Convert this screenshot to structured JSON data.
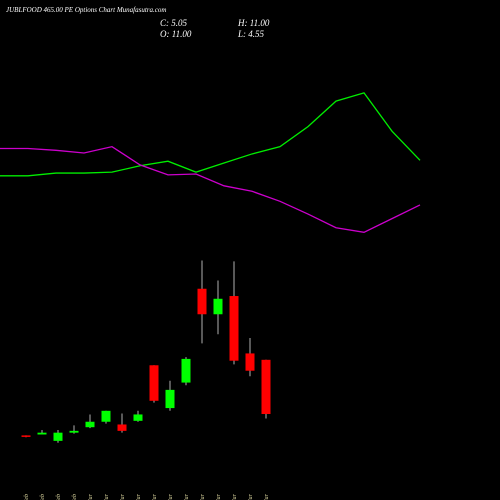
{
  "chart_data": {
    "type": "candlestick",
    "title": "JUBLFOOD 465.00 PE Options  Chart Munafasutra.com",
    "info": [
      "C: 5.05",
      "H: 11.00",
      "O: 11.00",
      "L: 4.55"
    ],
    "categories": [
      "22 Feb",
      "23 Feb",
      "26 Feb",
      "27 Feb",
      "01 Mar",
      "04 Mar",
      "05 Mar",
      "06 Mar",
      "07 Mar",
      "11 Mar",
      "12 Mar",
      "13 Mar",
      "14 Mar",
      "15 Mar",
      "18 Mar",
      "19 Mar"
    ],
    "open": [
      2.7,
      2.8,
      2.1,
      3.0,
      3.6,
      4.2,
      3.9,
      4.3,
      10.4,
      5.7,
      8.5,
      18.8,
      16.0,
      18.0,
      11.7,
      11.0
    ],
    "high": [
      2.7,
      3.3,
      3.3,
      3.8,
      5.0,
      5.4,
      5.1,
      5.4,
      10.4,
      8.7,
      11.3,
      21.9,
      19.7,
      21.8,
      13.4,
      11.0
    ],
    "low": [
      2.5,
      2.8,
      1.9,
      2.9,
      3.5,
      4.0,
      3.0,
      4.2,
      6.3,
      5.4,
      8.2,
      12.8,
      13.8,
      10.5,
      9.2,
      4.55
    ],
    "close": [
      2.6,
      3.0,
      3.0,
      3.2,
      4.2,
      5.4,
      3.2,
      5.0,
      6.5,
      7.7,
      11.1,
      16.0,
      17.7,
      10.9,
      9.8,
      5.05
    ],
    "up_color": "#00ff00",
    "down_color": "#ff0000",
    "lines": [
      {
        "color": "#00ee00",
        "values": [
          31.2,
          31.2,
          31.5,
          31.5,
          31.6,
          32.3,
          32.8,
          31.6,
          32.6,
          33.6,
          34.4,
          36.6,
          39.4,
          40.3,
          36.1,
          32.9
        ]
      },
      {
        "color": "#cc00cc",
        "values": [
          34.2,
          34.2,
          34.0,
          33.7,
          34.4,
          32.4,
          31.3,
          31.4,
          30.1,
          29.5,
          28.4,
          27.0,
          25.5,
          25.0,
          26.5,
          28.0
        ]
      }
    ],
    "ylim": [
      0,
      50.5
    ]
  }
}
